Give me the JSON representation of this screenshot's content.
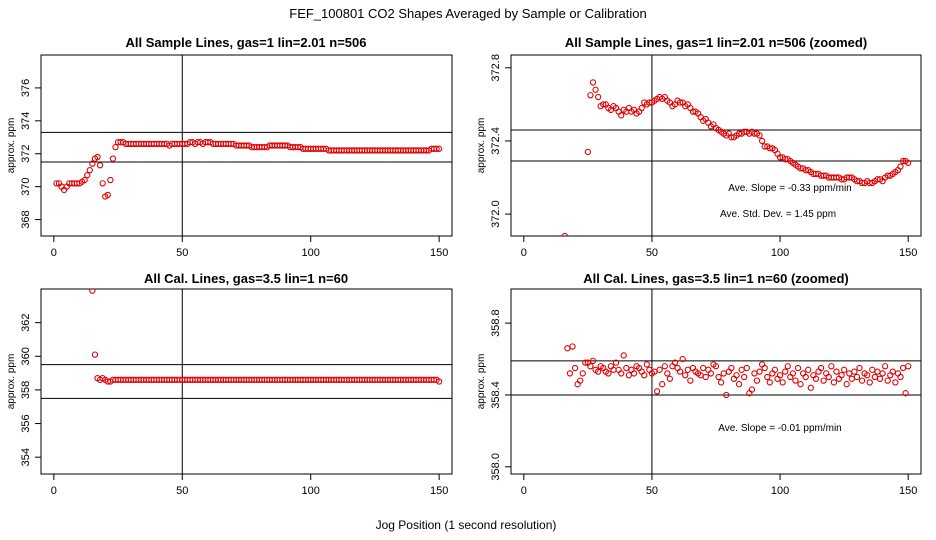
{
  "page_title": "FEF_100801  CO2 Shapes Averaged by Sample or Calibration",
  "x_axis_label": "Jog Position (1 second resolution)",
  "chart_data": [
    {
      "type": "scatter",
      "title": "All Sample Lines, gas=1 lin=2.01 n=506",
      "ylabel": "approx. ppm",
      "xlim": [
        -5,
        155
      ],
      "ylim": [
        367,
        378
      ],
      "xticks": [
        0,
        50,
        100,
        150
      ],
      "yticks": [
        368,
        370,
        372,
        374,
        376
      ],
      "vline": 50,
      "hlines": [
        371.5,
        373.3
      ],
      "annotations": [],
      "x": [
        1,
        2,
        3,
        4,
        5,
        6,
        7,
        8,
        9,
        10,
        11,
        12,
        13,
        14,
        15,
        16,
        17,
        18,
        19,
        20,
        21,
        22,
        23,
        24,
        25,
        26,
        27,
        28,
        29,
        30,
        31,
        32,
        33,
        34,
        35,
        36,
        37,
        38,
        39,
        40,
        41,
        42,
        43,
        44,
        45,
        46,
        47,
        48,
        49,
        50,
        51,
        52,
        53,
        54,
        55,
        56,
        57,
        58,
        59,
        60,
        61,
        62,
        63,
        64,
        65,
        66,
        67,
        68,
        69,
        70,
        71,
        72,
        73,
        74,
        75,
        76,
        77,
        78,
        79,
        80,
        81,
        82,
        83,
        84,
        85,
        86,
        87,
        88,
        89,
        90,
        91,
        92,
        93,
        94,
        95,
        96,
        97,
        98,
        99,
        100,
        101,
        102,
        103,
        104,
        105,
        106,
        107,
        108,
        109,
        110,
        111,
        112,
        113,
        114,
        115,
        116,
        117,
        118,
        119,
        120,
        121,
        122,
        123,
        124,
        125,
        126,
        127,
        128,
        129,
        130,
        131,
        132,
        133,
        134,
        135,
        136,
        137,
        138,
        139,
        140,
        141,
        142,
        143,
        144,
        145,
        146,
        147,
        148,
        149,
        150
      ],
      "y": [
        370.2,
        370.2,
        370.0,
        369.8,
        370.0,
        370.2,
        370.2,
        370.2,
        370.2,
        370.2,
        370.3,
        370.4,
        370.7,
        371.0,
        371.4,
        371.7,
        371.8,
        371.3,
        370.2,
        369.4,
        369.5,
        370.4,
        371.7,
        372.4,
        372.7,
        372.7,
        372.7,
        372.6,
        372.6,
        372.6,
        372.6,
        372.6,
        372.6,
        372.6,
        372.6,
        372.6,
        372.6,
        372.6,
        372.6,
        372.6,
        372.6,
        372.6,
        372.6,
        372.6,
        372.5,
        372.6,
        372.6,
        372.6,
        372.6,
        372.6,
        372.6,
        372.6,
        372.7,
        372.7,
        372.6,
        372.7,
        372.7,
        372.6,
        372.7,
        372.7,
        372.7,
        372.6,
        372.6,
        372.6,
        372.6,
        372.6,
        372.6,
        372.6,
        372.6,
        372.6,
        372.5,
        372.5,
        372.5,
        372.5,
        372.5,
        372.5,
        372.4,
        372.4,
        372.4,
        372.4,
        372.4,
        372.4,
        372.4,
        372.5,
        372.5,
        372.5,
        372.5,
        372.5,
        372.5,
        372.5,
        372.5,
        372.4,
        372.4,
        372.4,
        372.4,
        372.4,
        372.3,
        372.3,
        372.3,
        372.3,
        372.3,
        372.3,
        372.3,
        372.3,
        372.3,
        372.3,
        372.2,
        372.2,
        372.2,
        372.2,
        372.2,
        372.2,
        372.2,
        372.2,
        372.2,
        372.2,
        372.2,
        372.2,
        372.2,
        372.2,
        372.2,
        372.2,
        372.2,
        372.2,
        372.2,
        372.2,
        372.2,
        372.2,
        372.2,
        372.2,
        372.2,
        372.2,
        372.2,
        372.2,
        372.2,
        372.2,
        372.2,
        372.2,
        372.2,
        372.2,
        372.2,
        372.2,
        372.2,
        372.2,
        372.2,
        372.2,
        372.3,
        372.3,
        372.3,
        372.3
      ]
    },
    {
      "type": "scatter",
      "title": "All Sample Lines, gas=1 lin=2.01 n=506 (zoomed)",
      "ylabel": "approx. ppm",
      "xlim": [
        -5,
        155
      ],
      "ylim": [
        371.88,
        372.87
      ],
      "xticks": [
        0,
        50,
        100,
        150
      ],
      "yticks": [
        372.0,
        372.4,
        372.8
      ],
      "vline": 50,
      "hlines": [
        372.46,
        372.29
      ],
      "annotations": [
        "Ave. Slope =  -0.33  ppm/min",
        "Ave. Std. Dev. =  1.45  ppm"
      ],
      "x": [
        16,
        25,
        26,
        27,
        28,
        29,
        30,
        31,
        32,
        33,
        34,
        35,
        36,
        37,
        38,
        39,
        40,
        41,
        42,
        43,
        44,
        45,
        46,
        47,
        48,
        49,
        50,
        51,
        52,
        53,
        54,
        55,
        56,
        57,
        58,
        59,
        60,
        61,
        62,
        63,
        64,
        65,
        66,
        67,
        68,
        69,
        70,
        71,
        72,
        73,
        74,
        75,
        76,
        77,
        78,
        79,
        80,
        81,
        82,
        83,
        84,
        85,
        86,
        87,
        88,
        89,
        90,
        91,
        92,
        93,
        94,
        95,
        96,
        97,
        98,
        99,
        100,
        101,
        102,
        103,
        104,
        105,
        106,
        107,
        108,
        109,
        110,
        111,
        112,
        113,
        114,
        115,
        116,
        117,
        118,
        119,
        120,
        121,
        122,
        123,
        124,
        125,
        126,
        127,
        128,
        129,
        130,
        131,
        132,
        133,
        134,
        135,
        136,
        137,
        138,
        139,
        140,
        141,
        142,
        143,
        144,
        145,
        146,
        147,
        148,
        149,
        150
      ],
      "y": [
        371.88,
        372.34,
        372.65,
        372.72,
        372.68,
        372.64,
        372.59,
        372.6,
        372.6,
        372.58,
        372.57,
        372.59,
        372.58,
        372.56,
        372.54,
        372.57,
        372.56,
        372.58,
        372.56,
        372.57,
        372.55,
        372.56,
        372.58,
        372.61,
        372.6,
        372.61,
        372.61,
        372.62,
        372.63,
        372.64,
        372.63,
        372.64,
        372.62,
        372.61,
        372.59,
        372.6,
        372.62,
        372.61,
        372.61,
        372.59,
        372.6,
        372.58,
        372.56,
        372.56,
        372.55,
        372.53,
        372.51,
        372.52,
        372.5,
        372.48,
        372.49,
        372.47,
        372.46,
        372.45,
        372.44,
        372.43,
        372.44,
        372.42,
        372.42,
        372.43,
        372.44,
        372.44,
        372.45,
        372.45,
        372.44,
        372.45,
        372.44,
        372.44,
        372.43,
        372.4,
        372.37,
        372.37,
        372.36,
        372.36,
        372.35,
        372.33,
        372.31,
        372.31,
        372.3,
        372.3,
        372.29,
        372.28,
        372.27,
        372.26,
        372.25,
        372.25,
        372.24,
        372.24,
        372.23,
        372.22,
        372.22,
        372.22,
        372.21,
        372.21,
        372.21,
        372.2,
        372.2,
        372.2,
        372.2,
        372.2,
        372.19,
        372.19,
        372.2,
        372.2,
        372.2,
        372.19,
        372.18,
        372.18,
        372.17,
        372.17,
        372.18,
        372.17,
        372.17,
        372.18,
        372.19,
        372.19,
        372.18,
        372.2,
        372.21,
        372.21,
        372.22,
        372.23,
        372.24,
        372.26,
        372.29,
        372.29,
        372.28
      ]
    },
    {
      "type": "scatter",
      "title": "All Cal. Lines, gas=3.5 lin=1 n=60",
      "ylabel": "approx. ppm",
      "xlim": [
        -5,
        155
      ],
      "ylim": [
        353,
        364
      ],
      "xticks": [
        0,
        50,
        100,
        150
      ],
      "yticks": [
        354,
        356,
        358,
        360,
        362
      ],
      "vline": 50,
      "hlines": [
        359.5,
        357.5
      ],
      "annotations": [],
      "x": [
        15,
        16,
        17,
        18,
        19,
        20,
        21,
        22,
        23,
        24,
        25,
        26,
        27,
        28,
        29,
        30,
        31,
        32,
        33,
        34,
        35,
        36,
        37,
        38,
        39,
        40,
        41,
        42,
        43,
        44,
        45,
        46,
        47,
        48,
        49,
        50,
        51,
        52,
        53,
        54,
        55,
        56,
        57,
        58,
        59,
        60,
        61,
        62,
        63,
        64,
        65,
        66,
        67,
        68,
        69,
        70,
        71,
        72,
        73,
        74,
        75,
        76,
        77,
        78,
        79,
        80,
        81,
        82,
        83,
        84,
        85,
        86,
        87,
        88,
        89,
        90,
        91,
        92,
        93,
        94,
        95,
        96,
        97,
        98,
        99,
        100,
        101,
        102,
        103,
        104,
        105,
        106,
        107,
        108,
        109,
        110,
        111,
        112,
        113,
        114,
        115,
        116,
        117,
        118,
        119,
        120,
        121,
        122,
        123,
        124,
        125,
        126,
        127,
        128,
        129,
        130,
        131,
        132,
        133,
        134,
        135,
        136,
        137,
        138,
        139,
        140,
        141,
        142,
        143,
        144,
        145,
        146,
        147,
        148,
        149,
        150
      ],
      "y": [
        363.9,
        360.1,
        358.7,
        358.6,
        358.7,
        358.6,
        358.5,
        358.5,
        358.6,
        358.6,
        358.6,
        358.6,
        358.6,
        358.6,
        358.6,
        358.6,
        358.6,
        358.6,
        358.6,
        358.6,
        358.6,
        358.6,
        358.6,
        358.6,
        358.6,
        358.6,
        358.6,
        358.6,
        358.6,
        358.6,
        358.6,
        358.6,
        358.6,
        358.6,
        358.6,
        358.6,
        358.6,
        358.6,
        358.6,
        358.6,
        358.6,
        358.6,
        358.6,
        358.6,
        358.6,
        358.6,
        358.6,
        358.6,
        358.6,
        358.6,
        358.6,
        358.6,
        358.6,
        358.6,
        358.6,
        358.6,
        358.6,
        358.6,
        358.6,
        358.6,
        358.6,
        358.6,
        358.6,
        358.6,
        358.6,
        358.6,
        358.6,
        358.6,
        358.6,
        358.6,
        358.6,
        358.6,
        358.6,
        358.6,
        358.6,
        358.6,
        358.6,
        358.6,
        358.6,
        358.6,
        358.6,
        358.6,
        358.6,
        358.6,
        358.6,
        358.6,
        358.6,
        358.6,
        358.6,
        358.6,
        358.6,
        358.6,
        358.6,
        358.6,
        358.6,
        358.6,
        358.6,
        358.6,
        358.6,
        358.6,
        358.6,
        358.6,
        358.6,
        358.6,
        358.6,
        358.6,
        358.6,
        358.6,
        358.6,
        358.6,
        358.6,
        358.6,
        358.6,
        358.6,
        358.6,
        358.6,
        358.6,
        358.6,
        358.6,
        358.6,
        358.6,
        358.6,
        358.6,
        358.6,
        358.6,
        358.6,
        358.6,
        358.6,
        358.6,
        358.6,
        358.6,
        358.6,
        358.6,
        358.6,
        358.6,
        358.5
      ]
    },
    {
      "type": "scatter",
      "title": "All Cal. Lines, gas=3.5 lin=1 n=60 (zoomed)",
      "ylabel": "approx. ppm",
      "xlim": [
        -5,
        155
      ],
      "ylim": [
        357.96,
        358.99
      ],
      "xticks": [
        0,
        50,
        100,
        150
      ],
      "yticks": [
        358.0,
        358.4,
        358.8
      ],
      "vline": 50,
      "hlines": [
        358.59,
        358.4
      ],
      "annotations": [
        "Ave. Slope =  -0.01  ppm/min"
      ],
      "x": [
        17,
        18,
        19,
        20,
        21,
        22,
        23,
        24,
        25,
        26,
        27,
        28,
        29,
        30,
        31,
        32,
        33,
        34,
        35,
        36,
        37,
        38,
        39,
        40,
        41,
        42,
        43,
        44,
        45,
        46,
        47,
        48,
        49,
        50,
        51,
        52,
        53,
        54,
        55,
        56,
        57,
        58,
        59,
        60,
        61,
        62,
        63,
        64,
        65,
        66,
        67,
        68,
        69,
        70,
        71,
        72,
        73,
        74,
        75,
        76,
        77,
        78,
        79,
        80,
        81,
        82,
        83,
        84,
        85,
        86,
        87,
        88,
        89,
        90,
        91,
        92,
        93,
        94,
        95,
        96,
        97,
        98,
        99,
        100,
        101,
        102,
        103,
        104,
        105,
        106,
        107,
        108,
        109,
        110,
        111,
        112,
        113,
        114,
        115,
        116,
        117,
        118,
        119,
        120,
        121,
        122,
        123,
        124,
        125,
        126,
        127,
        128,
        129,
        130,
        131,
        132,
        133,
        134,
        135,
        136,
        137,
        138,
        139,
        140,
        141,
        142,
        143,
        144,
        145,
        146,
        147,
        148,
        149,
        150
      ],
      "y": [
        358.66,
        358.52,
        358.67,
        358.55,
        358.46,
        358.48,
        358.52,
        358.58,
        358.58,
        358.56,
        358.59,
        358.54,
        358.53,
        358.56,
        358.55,
        358.53,
        358.52,
        358.56,
        358.54,
        358.58,
        358.54,
        358.52,
        358.62,
        358.55,
        358.51,
        358.54,
        358.52,
        358.56,
        358.55,
        358.53,
        358.51,
        358.57,
        358.54,
        358.52,
        358.53,
        358.42,
        358.54,
        358.46,
        358.56,
        358.52,
        358.49,
        358.56,
        358.58,
        358.55,
        358.53,
        358.6,
        358.51,
        358.54,
        358.48,
        358.55,
        358.53,
        358.52,
        358.51,
        358.55,
        358.5,
        358.54,
        358.52,
        358.57,
        358.56,
        358.5,
        358.47,
        358.52,
        358.4,
        358.53,
        358.55,
        358.49,
        358.51,
        358.46,
        358.54,
        358.5,
        358.55,
        358.41,
        358.43,
        358.52,
        358.48,
        358.53,
        358.57,
        358.55,
        358.5,
        358.47,
        358.52,
        358.54,
        358.49,
        358.51,
        358.47,
        358.53,
        358.56,
        358.5,
        358.52,
        358.48,
        358.55,
        358.46,
        358.52,
        358.5,
        358.54,
        358.44,
        358.51,
        358.49,
        358.53,
        358.55,
        358.48,
        358.52,
        358.5,
        358.56,
        358.47,
        358.53,
        358.49,
        358.51,
        358.54,
        358.46,
        358.52,
        358.49,
        358.53,
        358.5,
        358.55,
        358.48,
        358.52,
        358.51,
        358.47,
        358.54,
        358.5,
        358.53,
        358.49,
        358.52,
        358.56,
        358.48,
        358.51,
        358.53,
        358.47,
        358.52,
        358.5,
        358.55,
        358.41,
        358.56
      ]
    }
  ]
}
